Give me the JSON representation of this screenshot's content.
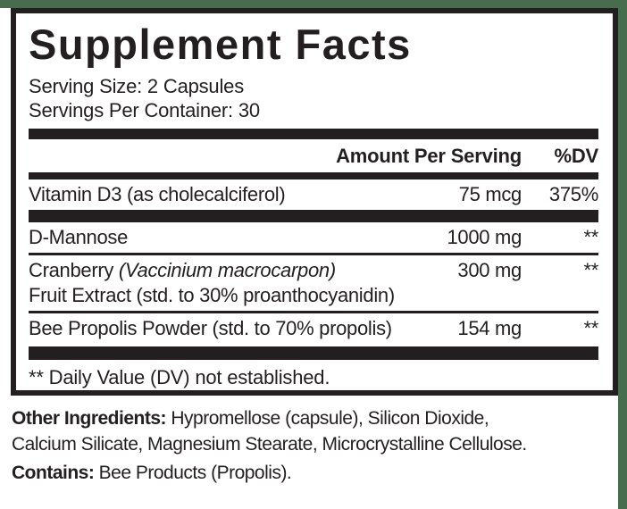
{
  "label": {
    "title": "Supplement Facts",
    "serving_size": "Serving Size: 2 Capsules",
    "servings_per_container": "Servings Per Container: 30",
    "header": {
      "amount": "Amount Per Serving",
      "dv": "%DV"
    },
    "rows": [
      {
        "name": "Vitamin D3 (as cholecalciferol)",
        "amount": "75 mcg",
        "dv": "375%"
      },
      {
        "name": "D-Mannose",
        "amount": "1000 mg",
        "dv": "**"
      },
      {
        "name_prefix": "Cranberry ",
        "name_latin": "(Vaccinium macrocarpon)",
        "name_line2": "Fruit Extract (std. to 30% proanthocyanidin)",
        "amount": "300 mg",
        "dv": "**"
      },
      {
        "name": "Bee Propolis Powder (std. to 70% propolis)",
        "amount": "154 mg",
        "dv": "**"
      }
    ],
    "footnote": "** Daily Value (DV) not established.",
    "other_ingredients": {
      "label": "Other Ingredients: ",
      "line1_rest": "Hypromellose (capsule), Silicon Dioxide,",
      "line2": "Calcium Silicate, Magnesium Stearate, Microcrystalline Cellulose."
    },
    "contains": {
      "label": "Contains: ",
      "text": "Bee Products (Propolis)."
    }
  },
  "colors": {
    "ink": "#231f20",
    "background_green": "#486c4e",
    "paper": "#ffffff"
  }
}
